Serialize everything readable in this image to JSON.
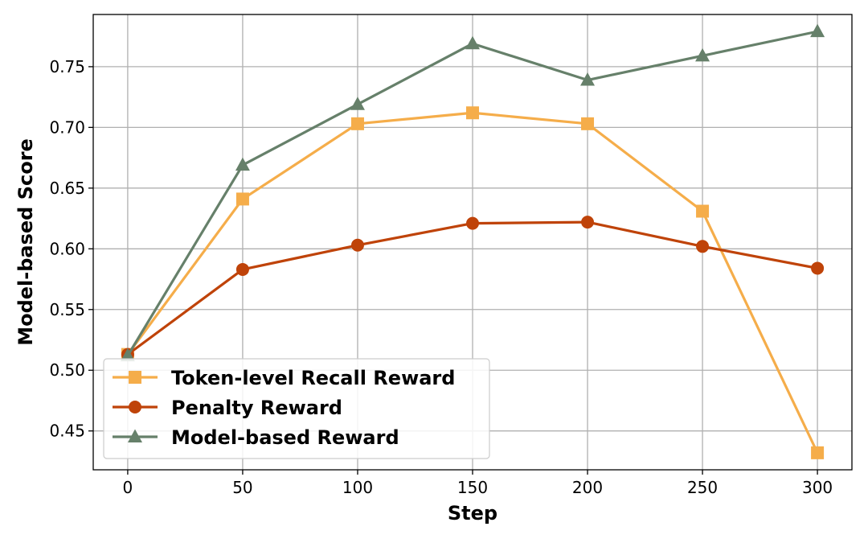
{
  "chart_data": {
    "type": "line",
    "xlabel": "Step",
    "ylabel": "Model-based Score",
    "x": [
      0,
      50,
      100,
      150,
      200,
      250,
      300
    ],
    "xticks": [
      "0",
      "50",
      "100",
      "150",
      "200",
      "250",
      "300"
    ],
    "yticks": [
      "0.45",
      "0.50",
      "0.55",
      "0.60",
      "0.65",
      "0.70",
      "0.75"
    ],
    "xlim": [
      -15,
      315
    ],
    "ylim": [
      0.418,
      0.793
    ],
    "grid": true,
    "legend_position": "lower-left",
    "series": [
      {
        "name": "Token-level Recall Reward",
        "color": "#F5AD4A",
        "marker": "square",
        "values": [
          0.513,
          0.641,
          0.703,
          0.712,
          0.703,
          0.631,
          0.432
        ]
      },
      {
        "name": "Penalty Reward",
        "color": "#BF4309",
        "marker": "circle",
        "values": [
          0.513,
          0.583,
          0.603,
          0.621,
          0.622,
          0.602,
          0.584
        ]
      },
      {
        "name": "Model-based Reward",
        "color": "#66806A",
        "marker": "triangle",
        "values": [
          0.512,
          0.669,
          0.719,
          0.769,
          0.739,
          0.759,
          0.779
        ]
      }
    ]
  }
}
